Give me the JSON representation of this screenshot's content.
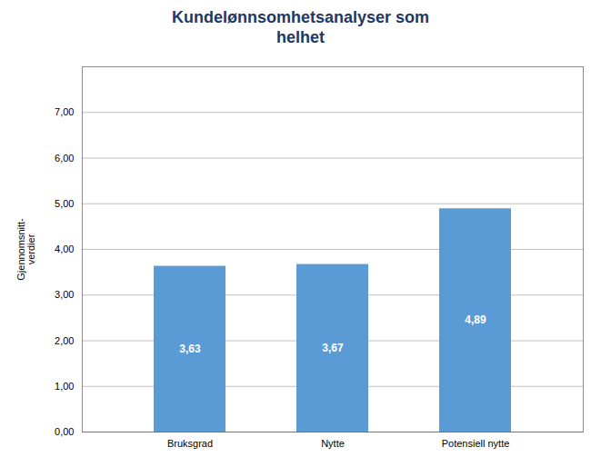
{
  "chart_data": {
    "type": "bar",
    "title": "Kundelønnsomhetsanalyser som\nhelhet",
    "ylabel": "Gjennomsnitt-\nverdier",
    "categories": [
      "Bruksgrad",
      "Nytte",
      "Potensiell nytte"
    ],
    "values": [
      3.63,
      3.67,
      4.89
    ],
    "value_labels": [
      "3,63",
      "3,67",
      "4,89"
    ],
    "data_labels": true,
    "color": "#5B9BD5",
    "ylim": [
      0,
      8.0
    ],
    "yticks": [
      {
        "value": 0.0,
        "label": "0,00"
      },
      {
        "value": 1.0,
        "label": "1,00"
      },
      {
        "value": 2.0,
        "label": "2,00"
      },
      {
        "value": 3.0,
        "label": "3,00"
      },
      {
        "value": 4.0,
        "label": "4,00"
      },
      {
        "value": 5.0,
        "label": "5,00"
      },
      {
        "value": 6.0,
        "label": "6,00"
      },
      {
        "value": 7.0,
        "label": "7,00"
      }
    ],
    "grid": true
  }
}
